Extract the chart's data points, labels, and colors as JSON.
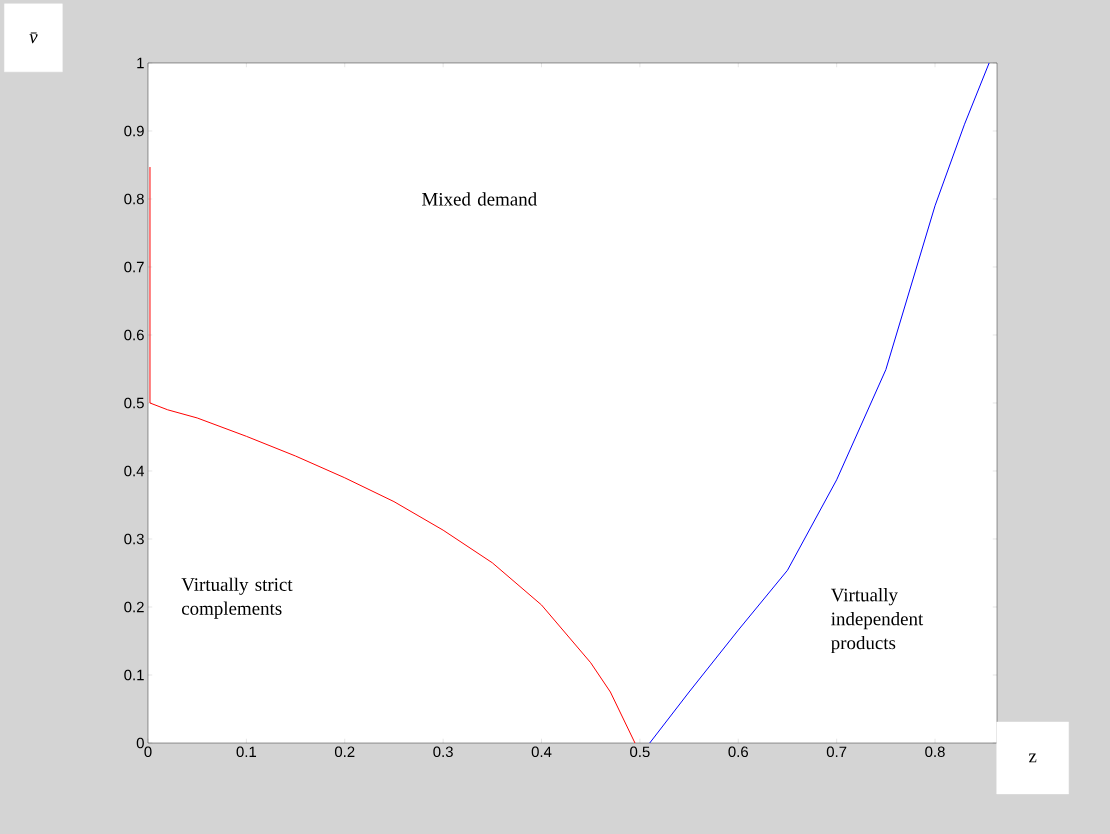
{
  "chart_data": {
    "type": "line",
    "xlabel": "z",
    "ylabel": "v̄",
    "annotations": [
      "Mixed demand",
      "Virtually strict complements",
      "Virtually independent products"
    ],
    "series": [
      {
        "color": "#ff0000",
        "x": [
          0.002,
          0.002,
          0.02,
          0.05,
          0.1,
          0.15,
          0.2,
          0.25,
          0.3,
          0.35,
          0.4,
          0.45,
          0.47,
          0.495
        ],
        "values": [
          0.847,
          0.5,
          0.49,
          0.478,
          0.451,
          0.422,
          0.39,
          0.355,
          0.313,
          0.265,
          0.203,
          0.118,
          0.075,
          0
        ]
      },
      {
        "color": "#0000ff",
        "x": [
          0.51,
          0.55,
          0.6,
          0.65,
          0.7,
          0.75,
          0.8,
          0.83,
          0.855
        ],
        "values": [
          0,
          0.075,
          0.166,
          0.254,
          0.387,
          0.549,
          0.79,
          0.91,
          1.0
        ]
      }
    ],
    "xlim": [
      0,
      0.863
    ],
    "ylim": [
      0,
      1
    ],
    "xticks": [
      0,
      0.1,
      0.2,
      0.3,
      0.4,
      0.5,
      0.6,
      0.7,
      0.8
    ],
    "yticks": [
      0,
      0.1,
      0.2,
      0.3,
      0.4,
      0.5,
      0.6,
      0.7,
      0.8,
      0.9,
      1
    ]
  }
}
